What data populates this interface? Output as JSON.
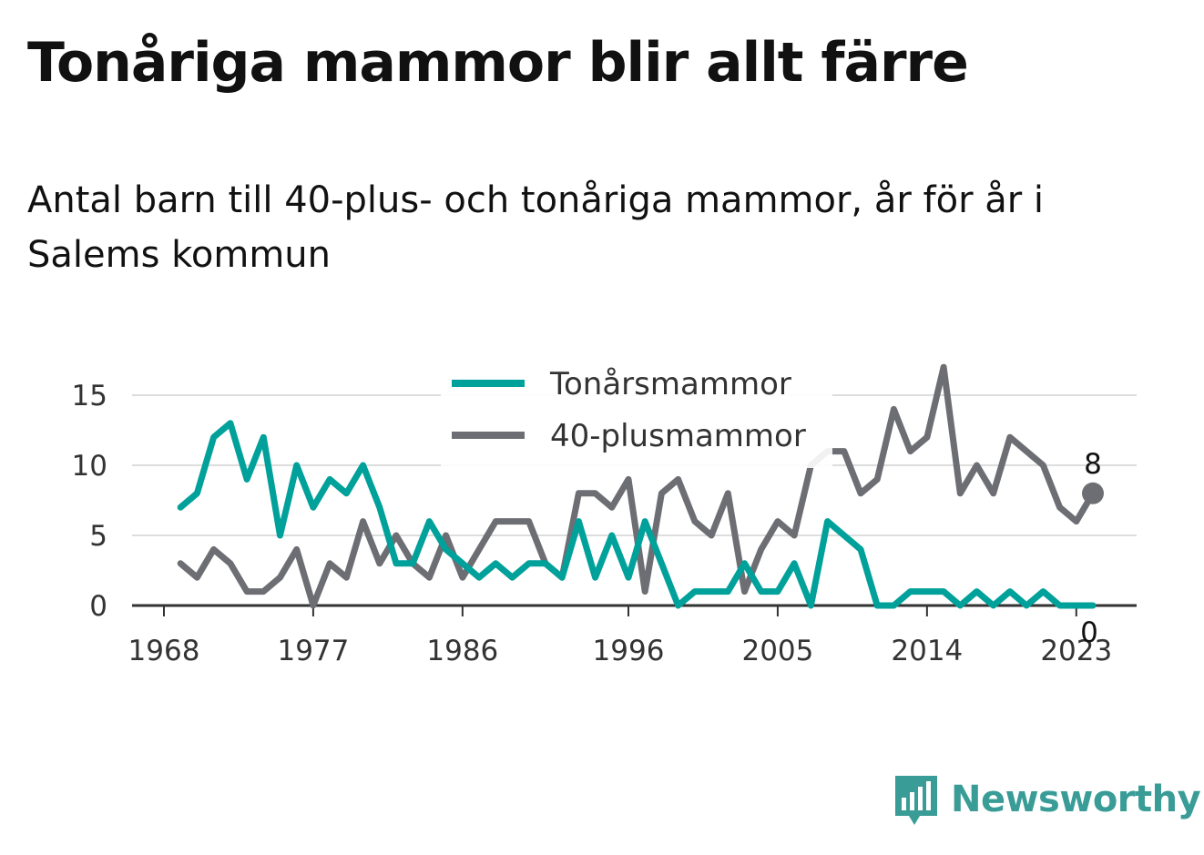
{
  "title": "Tonåriga mammor blir allt färre",
  "subtitle": "Antal barn till 40-plus- och tonåriga mammor, år för år i Salems kommun",
  "brand": {
    "name": "Newsworthy",
    "logo_icon": "bar-chart-speech-bubble-icon",
    "color": "#3a9c97"
  },
  "chart_data": {
    "type": "line",
    "x": [
      1969,
      1970,
      1971,
      1972,
      1973,
      1974,
      1975,
      1976,
      1977,
      1978,
      1979,
      1980,
      1981,
      1982,
      1983,
      1984,
      1985,
      1986,
      1987,
      1988,
      1989,
      1990,
      1991,
      1992,
      1993,
      1994,
      1995,
      1996,
      1997,
      1998,
      1999,
      2000,
      2001,
      2002,
      2003,
      2004,
      2005,
      2006,
      2007,
      2008,
      2009,
      2010,
      2011,
      2012,
      2013,
      2014,
      2015,
      2016,
      2017,
      2018,
      2019,
      2020,
      2021,
      2022,
      2023,
      2024
    ],
    "series": [
      {
        "name": "Tonårsmammor",
        "color": "#00a19a",
        "values": [
          7,
          8,
          12,
          13,
          9,
          12,
          5,
          10,
          7,
          9,
          8,
          10,
          7,
          3,
          3,
          6,
          4,
          3,
          2,
          3,
          2,
          3,
          3,
          2,
          6,
          2,
          5,
          2,
          6,
          3,
          0,
          1,
          1,
          1,
          3,
          1,
          1,
          3,
          0,
          6,
          5,
          4,
          0,
          0,
          1,
          1,
          1,
          0,
          1,
          0,
          1,
          0,
          1,
          0,
          0,
          0
        ]
      },
      {
        "name": "40-plusmammor",
        "color": "#6d6e73",
        "values": [
          3,
          2,
          4,
          3,
          1,
          1,
          2,
          4,
          0,
          3,
          2,
          6,
          3,
          5,
          3,
          2,
          5,
          2,
          4,
          6,
          6,
          6,
          3,
          2,
          8,
          8,
          7,
          9,
          1,
          8,
          9,
          6,
          5,
          8,
          1,
          4,
          6,
          5,
          10,
          11,
          11,
          8,
          9,
          14,
          11,
          12,
          17,
          8,
          10,
          8,
          12,
          11,
          10,
          7,
          6,
          8
        ]
      }
    ],
    "x_ticks": [
      1968,
      1977,
      1986,
      1996,
      2005,
      2014,
      2023
    ],
    "y_ticks": [
      0,
      5,
      10,
      15
    ],
    "ylim": [
      0,
      17.5
    ],
    "xlim": [
      1968,
      2026
    ],
    "grid": "horizontal",
    "legend_position": "top-center",
    "end_labels": [
      {
        "series": "40-plusmammor",
        "x": 2024,
        "value": 8,
        "text": "8"
      },
      {
        "series": "Tonårsmammor",
        "x": 2024,
        "value": 0,
        "text": "0"
      }
    ]
  }
}
